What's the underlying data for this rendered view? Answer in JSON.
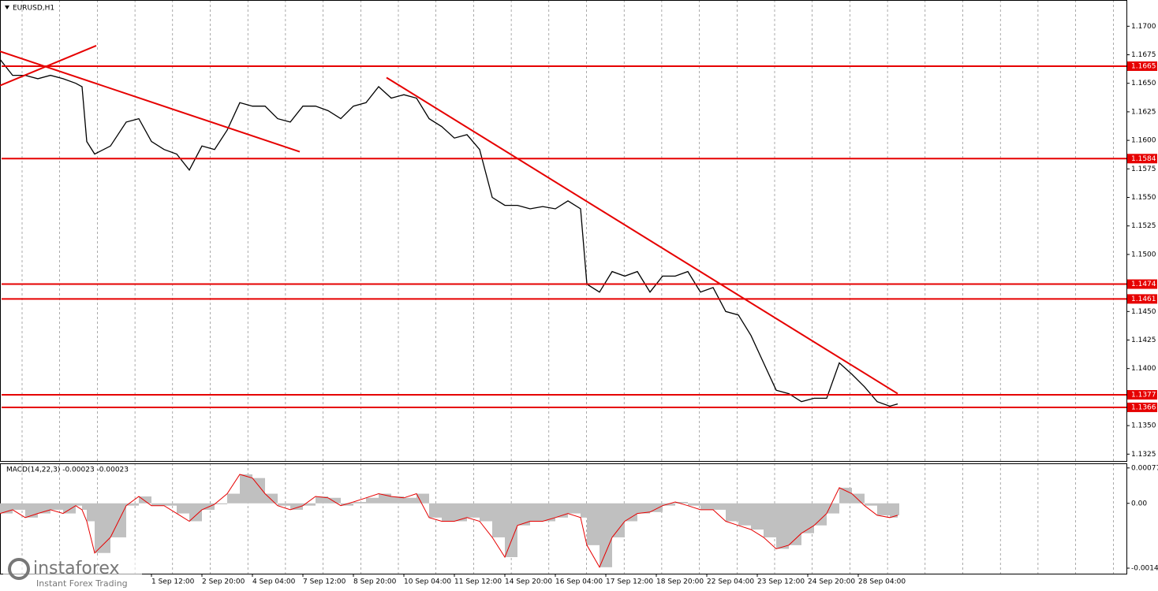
{
  "chart_data": [
    {
      "type": "line",
      "title": "EURUSD,H1",
      "color": "#000000",
      "level_color": "#e60000",
      "xlim": [
        0,
        714
      ],
      "ylim": [
        1.1319,
        1.1723
      ],
      "x": [
        0,
        8,
        16,
        24,
        32,
        40,
        48,
        52,
        55,
        60,
        70,
        80,
        88,
        96,
        104,
        112,
        120,
        128,
        136,
        144,
        152,
        160,
        168,
        176,
        184,
        192,
        200,
        208,
        216,
        224,
        232,
        240,
        248,
        256,
        264,
        272,
        280,
        288,
        296,
        304,
        312,
        320,
        328,
        336,
        344,
        352,
        360,
        368,
        372,
        380,
        388,
        396,
        404,
        412,
        420,
        428,
        436,
        444,
        452,
        460,
        468,
        476,
        484,
        492,
        500,
        508,
        516,
        524,
        532,
        540,
        548,
        556,
        564,
        569
      ],
      "values": [
        1.1671,
        1.1657,
        1.1657,
        1.1654,
        1.1657,
        1.1654,
        1.165,
        1.1647,
        1.1599,
        1.1588,
        1.1595,
        1.1616,
        1.1619,
        1.1599,
        1.1592,
        1.1588,
        1.1574,
        1.1595,
        1.1592,
        1.1609,
        1.1633,
        1.163,
        1.163,
        1.1619,
        1.1616,
        1.163,
        1.163,
        1.1626,
        1.1619,
        1.163,
        1.1633,
        1.1647,
        1.1637,
        1.164,
        1.1637,
        1.1619,
        1.1612,
        1.1602,
        1.1605,
        1.1592,
        1.155,
        1.1543,
        1.1543,
        1.154,
        1.1542,
        1.154,
        1.1547,
        1.154,
        1.1474,
        1.1467,
        1.1485,
        1.1481,
        1.1485,
        1.1467,
        1.1481,
        1.1481,
        1.1485,
        1.1467,
        1.1471,
        1.145,
        1.1447,
        1.1429,
        1.1405,
        1.1381,
        1.1378,
        1.1371,
        1.1374,
        1.1374,
        1.1405,
        1.1395,
        1.1384,
        1.1371,
        1.1367,
        1.1369
      ],
      "levels": [
        1.1665,
        1.1584,
        1.1474,
        1.1461,
        1.1377,
        1.1366
      ],
      "trendlines": [
        {
          "x": [
            0,
            190
          ],
          "y": [
            1.1678,
            1.159
          ]
        },
        {
          "x": [
            0,
            61
          ],
          "y": [
            1.1648,
            1.1683
          ]
        },
        {
          "x": [
            245,
            569
          ],
          "y": [
            1.1655,
            1.1378
          ]
        }
      ],
      "yticks": [
        {
          "value": 1.17,
          "label": "1.1700"
        },
        1.1675,
        {
          "value": 1.165,
          "label": "1.1650"
        },
        1.1625,
        {
          "value": 1.16,
          "label": "1.1600"
        },
        1.1575,
        {
          "value": 1.155,
          "label": "1.1550"
        },
        1.1525,
        {
          "value": 1.15,
          "label": "1.1500"
        },
        {
          "value": 1.145,
          "label": "1.1450"
        },
        1.1425,
        {
          "value": 1.14,
          "label": "1.1400"
        },
        {
          "value": 1.135,
          "label": "1.1350"
        },
        1.1325
      ]
    },
    {
      "type": "macd",
      "title": "MACD(14,22,3) -0.00023 -0.00023",
      "color": "#c0c0c0",
      "signal_color": "#e60000",
      "xlim": [
        0,
        714
      ],
      "ylim": [
        -0.00153,
        0.00087
      ],
      "x": [
        0,
        8,
        16,
        24,
        32,
        40,
        48,
        52,
        55,
        60,
        70,
        80,
        88,
        96,
        104,
        112,
        120,
        128,
        136,
        144,
        152,
        160,
        168,
        176,
        184,
        192,
        200,
        208,
        216,
        224,
        232,
        240,
        248,
        256,
        264,
        272,
        280,
        288,
        296,
        304,
        312,
        320,
        328,
        336,
        344,
        352,
        360,
        368,
        372,
        380,
        388,
        396,
        404,
        412,
        420,
        428,
        436,
        444,
        452,
        460,
        468,
        476,
        484,
        492,
        500,
        508,
        516,
        524,
        532,
        540,
        548,
        556,
        564,
        569
      ],
      "values": [
        -0.00022,
        -0.00014,
        -0.00031,
        -0.00022,
        -0.00014,
        -0.00022,
        -5e-05,
        -0.00014,
        -0.00039,
        -0.00108,
        -0.00074,
        -5e-05,
        0.00015,
        -5e-05,
        -5e-05,
        -0.00022,
        -0.00039,
        -0.00014,
        -2e-05,
        0.00021,
        0.00063,
        0.00055,
        0.00021,
        -5e-05,
        -0.00014,
        -5e-05,
        0.00015,
        0.00012,
        -5e-05,
        3e-05,
        0.00012,
        0.00021,
        0.00015,
        0.00012,
        0.00021,
        -0.00031,
        -0.00039,
        -0.00039,
        -0.00031,
        -0.00039,
        -0.00074,
        -0.00117,
        -0.00048,
        -0.00039,
        -0.00039,
        -0.00031,
        -0.00022,
        -0.00031,
        -0.00091,
        -0.00139,
        -0.00074,
        -0.00039,
        -0.00022,
        -0.00019,
        -5e-05,
        3e-05,
        -5e-05,
        -0.00014,
        -0.00014,
        -0.00039,
        -0.00048,
        -0.00057,
        -0.00074,
        -0.00099,
        -0.00091,
        -0.00065,
        -0.00048,
        -0.00022,
        0.00034,
        0.00021,
        -5e-05,
        -0.00026,
        -0.00031,
        -0.00026
      ],
      "yticks": [
        0.00077,
        {
          "value": 0,
          "label": "0.00"
        },
        -0.00141
      ],
      "xticks": [
        {
          "value": 96,
          "label": "1 Sep 12:00"
        },
        {
          "value": 128,
          "label": "2 Sep 20:00"
        },
        {
          "value": 160,
          "label": "4 Sep 04:00"
        },
        {
          "value": 192,
          "label": "7 Sep 12:00"
        },
        {
          "value": 224,
          "label": "8 Sep 20:00"
        },
        {
          "value": 256,
          "label": "10 Sep 04:00"
        },
        {
          "value": 288,
          "label": "11 Sep 12:00"
        },
        {
          "value": 320,
          "label": "14 Sep 20:00"
        },
        {
          "value": 352,
          "label": "16 Sep 04:00"
        },
        {
          "value": 384,
          "label": "17 Sep 12:00"
        },
        {
          "value": 416,
          "label": "18 Sep 20:00"
        },
        {
          "value": 448,
          "label": "22 Sep 04:00"
        },
        {
          "value": 480,
          "label": "23 Sep 12:00"
        },
        {
          "value": 512,
          "label": "24 Sep 20:00"
        },
        {
          "value": 544,
          "label": "28 Sep 04:00"
        }
      ]
    }
  ],
  "watermark": {
    "brand": "instaforex",
    "tagline": "Instant Forex Trading"
  }
}
